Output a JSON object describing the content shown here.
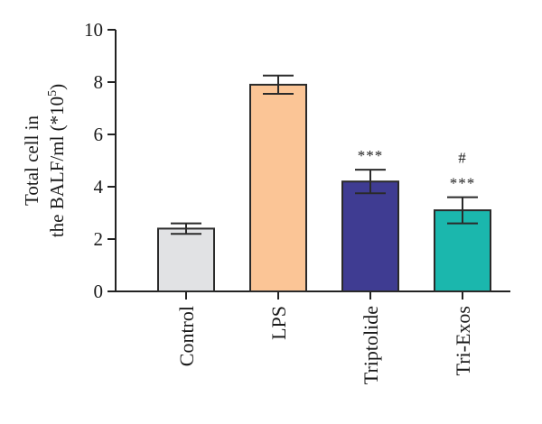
{
  "chart_data": {
    "type": "bar",
    "title": "",
    "xlabel": "",
    "ylabel_line1": "Total cell in",
    "ylabel_line2_prefix": "the BALF/ml (*10",
    "ylabel_line2_sup": "5",
    "ylabel_line2_suffix": ")",
    "ylim": [
      0,
      10
    ],
    "yticks": [
      0,
      2,
      4,
      6,
      8,
      10
    ],
    "ytick_labels": [
      "0",
      "2",
      "4",
      "6",
      "8",
      "10"
    ],
    "grid": false,
    "categories": [
      "Control",
      "LPS",
      "Triptolide",
      "Tri-Exos"
    ],
    "values": [
      2.4,
      7.9,
      4.2,
      3.1
    ],
    "errors": [
      0.2,
      0.35,
      0.45,
      0.5
    ],
    "colors": [
      "#e1e2e4",
      "#fbc596",
      "#3f3c92",
      "#1bb7ad"
    ],
    "annotations": [
      [],
      [],
      [
        "***"
      ],
      [
        "***",
        "#"
      ]
    ]
  }
}
